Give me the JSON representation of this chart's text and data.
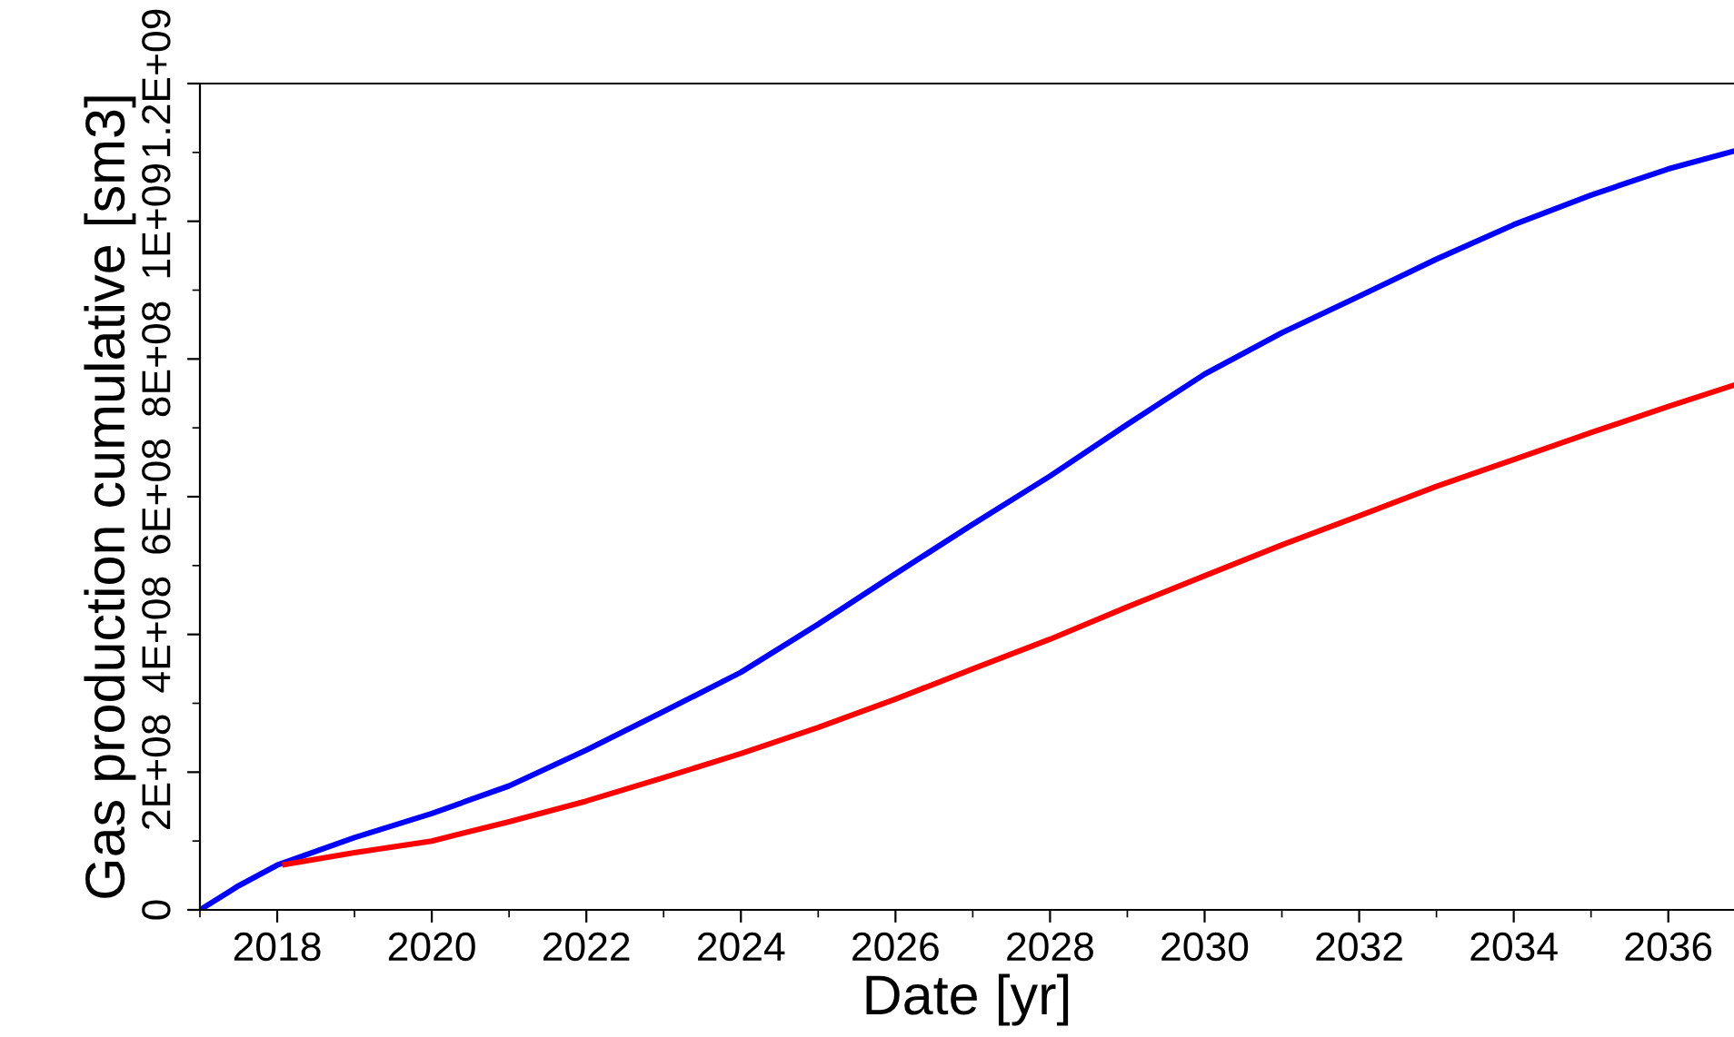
{
  "chart_data": {
    "type": "line",
    "xlabel": "Date [yr]",
    "ylabel": "Gas production cumulative [sm3]",
    "xlim": [
      2017.0,
      2036.85
    ],
    "xticks": [
      2018,
      2020,
      2022,
      2024,
      2026,
      2028,
      2030,
      2032,
      2034,
      2036
    ],
    "ylim": [
      0,
      1200000000
    ],
    "yticks": [
      {
        "value": 0,
        "label": "0"
      },
      {
        "value": 200000000,
        "label": "2E+08"
      },
      {
        "value": 400000000,
        "label": "4E+08"
      },
      {
        "value": 600000000,
        "label": "6E+08"
      },
      {
        "value": 800000000,
        "label": "8E+08"
      },
      {
        "value": 1000000000,
        "label": "1E+09"
      },
      {
        "value": 1200000000,
        "label": "1.2E+09"
      }
    ],
    "grid": false,
    "legend": false,
    "marker": "none",
    "line_style": "solid",
    "series": [
      {
        "color": "#0000ff",
        "x": [
          2017.0,
          2017.5,
          2018.0,
          2019.0,
          2020.0,
          2021.0,
          2022.0,
          2023.0,
          2024.0,
          2025.0,
          2026.0,
          2027.0,
          2028.0,
          2029.0,
          2030.0,
          2031.0,
          2032.0,
          2033.0,
          2034.0,
          2035.0,
          2036.0,
          2036.85
        ],
        "values": [
          0,
          35000000,
          65000000,
          105000000,
          140000000,
          180000000,
          232000000,
          288000000,
          345000000,
          415000000,
          488000000,
          560000000,
          630000000,
          705000000,
          778000000,
          838000000,
          891000000,
          945000000,
          995000000,
          1038000000,
          1076000000,
          1102000000
        ]
      },
      {
        "color": "#ff0000",
        "x": [
          2018.1,
          2019.0,
          2020.0,
          2021.0,
          2022.0,
          2023.0,
          2024.0,
          2025.0,
          2026.0,
          2027.0,
          2028.0,
          2029.0,
          2030.0,
          2031.0,
          2032.0,
          2033.0,
          2034.0,
          2035.0,
          2036.0,
          2036.85
        ],
        "values": [
          66000000,
          83000000,
          100000000,
          128000000,
          158000000,
          192000000,
          227000000,
          265000000,
          306000000,
          350000000,
          393000000,
          440000000,
          485000000,
          530000000,
          572000000,
          615000000,
          654000000,
          693000000,
          731000000,
          762000000
        ]
      }
    ]
  }
}
